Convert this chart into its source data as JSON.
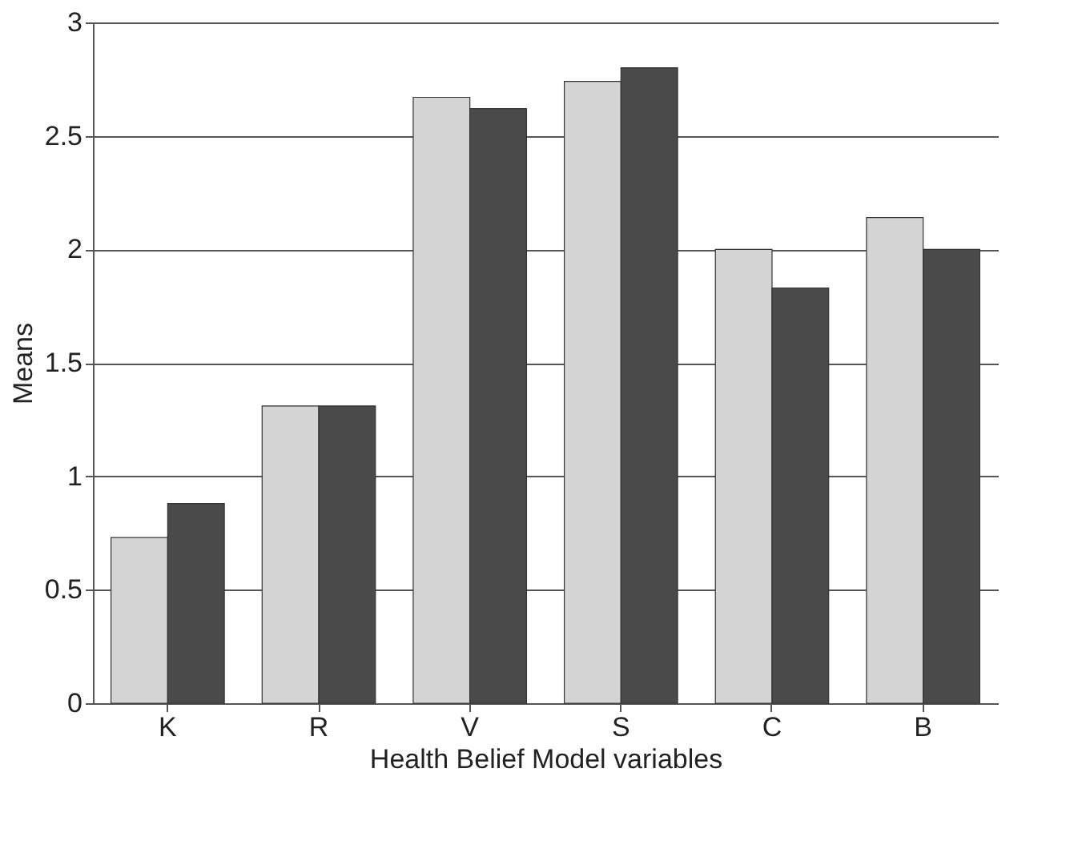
{
  "chart_data": {
    "type": "bar",
    "xlabel": "Health Belief Model variables",
    "ylabel": "Means",
    "categories": [
      "K",
      "R",
      "V",
      "S",
      "C",
      "B"
    ],
    "series": [
      {
        "color": "#d4d4d4",
        "values": [
          0.73,
          1.31,
          2.67,
          2.74,
          2.0,
          2.14
        ]
      },
      {
        "color": "#4a4a4a",
        "values": [
          0.88,
          1.31,
          2.62,
          2.8,
          1.83,
          2.0
        ]
      }
    ],
    "ylim": [
      0,
      3
    ],
    "yticks": [
      0,
      0.5,
      1,
      1.5,
      2,
      2.5,
      3
    ],
    "grid": "y",
    "legend": false
  }
}
